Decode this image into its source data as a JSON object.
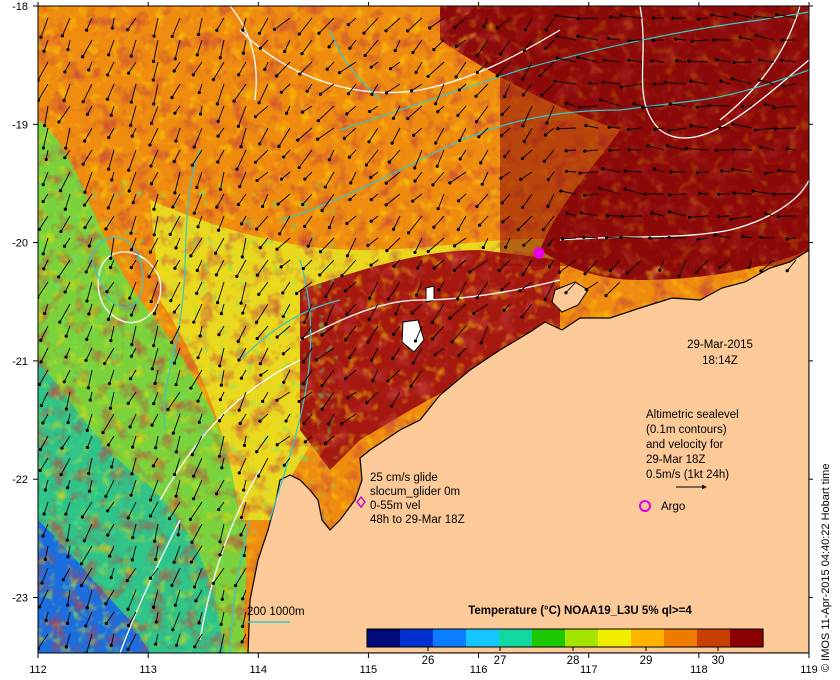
{
  "map": {
    "x_ticks": [
      "112",
      "113",
      "114",
      "115",
      "116",
      "117",
      "118",
      "119"
    ],
    "y_ticks": [
      "-18",
      "-19",
      "-20",
      "-21",
      "-22",
      "-23"
    ],
    "date": "29-Mar-2015",
    "time": "18:14Z",
    "altimetry_note": [
      "Altimetric sealevel",
      "(0.1m contours)",
      "and velocity for",
      "29-Mar 18Z",
      "0.5m/s (1kt 24h)"
    ],
    "glider_note": [
      "25 cm/s glide",
      "slocum_glider 0m",
      "0-55m vel",
      "48h to 29-Mar 18Z"
    ],
    "argo_label": "Argo",
    "bathy_label": "200  1000m",
    "colorbar": {
      "title": "Temperature (°C) NOAA19_L3U 5% ql>=4",
      "ticks": [
        "26",
        "27",
        "28",
        "29",
        "30"
      ],
      "colors": [
        "#000a78",
        "#0030d0",
        "#0a7cff",
        "#14c8ff",
        "#10d8a0",
        "#1ec800",
        "#a4e400",
        "#f2ee00",
        "#ffb400",
        "#ef7a00",
        "#c84000",
        "#8a0000"
      ]
    },
    "credit": "© IMOS 11-Apr-2015 04:40:22 Hobart time",
    "colors": {
      "land": "#fcc999",
      "hot": "#8c0a0a",
      "contour": "#ffffff",
      "bathy": "#36c8c8",
      "argo": "#e800e8"
    }
  }
}
